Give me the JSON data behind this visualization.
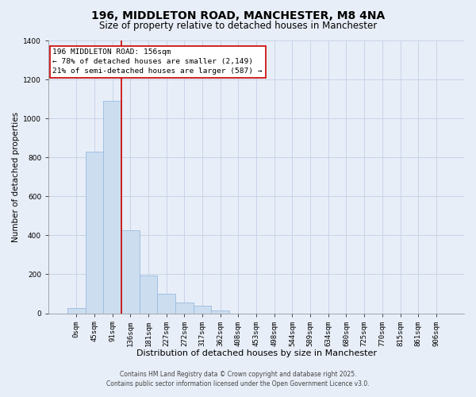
{
  "title": "196, MIDDLETON ROAD, MANCHESTER, M8 4NA",
  "subtitle": "Size of property relative to detached houses in Manchester",
  "xlabel": "Distribution of detached houses by size in Manchester",
  "ylabel": "Number of detached properties",
  "bar_values": [
    25,
    830,
    1090,
    425,
    195,
    100,
    57,
    37,
    15,
    0,
    0,
    0,
    0,
    0,
    0,
    0,
    0,
    0,
    0,
    0,
    0
  ],
  "bar_labels": [
    "0sqm",
    "45sqm",
    "91sqm",
    "136sqm",
    "181sqm",
    "227sqm",
    "272sqm",
    "317sqm",
    "362sqm",
    "408sqm",
    "453sqm",
    "498sqm",
    "544sqm",
    "589sqm",
    "634sqm",
    "680sqm",
    "725sqm",
    "770sqm",
    "815sqm",
    "861sqm",
    "906sqm"
  ],
  "bar_color": "#ccddf0",
  "bar_edgecolor": "#99bbdd",
  "vline_x": 2.5,
  "vline_color": "#cc0000",
  "annotation_title": "196 MIDDLETON ROAD: 156sqm",
  "annotation_line1": "← 78% of detached houses are smaller (2,149)",
  "annotation_line2": "21% of semi-detached houses are larger (587) →",
  "annotation_box_color": "#ffffff",
  "annotation_box_edgecolor": "#cc0000",
  "ylim": [
    0,
    1400
  ],
  "yticks": [
    0,
    200,
    400,
    600,
    800,
    1000,
    1200,
    1400
  ],
  "footnote1": "Contains HM Land Registry data © Crown copyright and database right 2025.",
  "footnote2": "Contains public sector information licensed under the Open Government Licence v3.0.",
  "background_color": "#e8eef8",
  "grid_color": "#c8d4e8",
  "title_fontsize": 10,
  "subtitle_fontsize": 8.5,
  "xlabel_fontsize": 8,
  "ylabel_fontsize": 7.5,
  "tick_fontsize": 6.5,
  "footnote_fontsize": 5.5
}
